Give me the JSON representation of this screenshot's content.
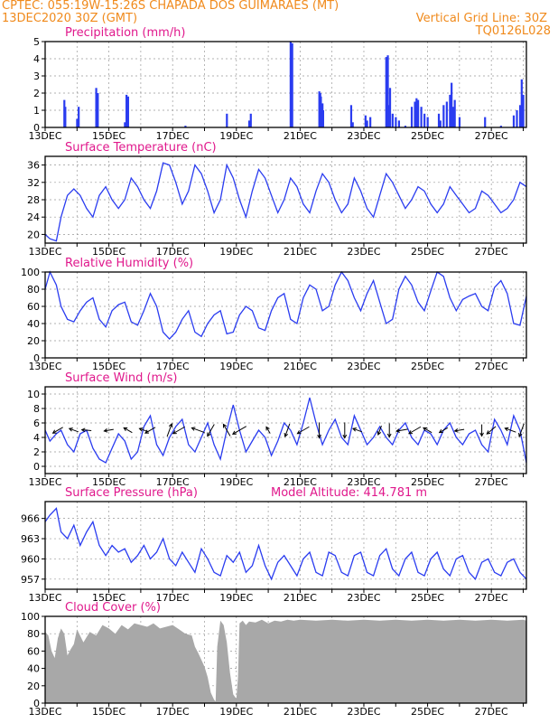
{
  "header": {
    "line1": "CPTEC:   055:19W-15:26S   CHAPADA DOS GUIMARAES (MT)",
    "line2": "13DEC2020 30Z (GMT)",
    "vertical_grid": "Vertical Grid Line: 30Z",
    "code": "TQ0126L028"
  },
  "x_ticks": [
    "13DEC",
    "15DEC",
    "17DEC",
    "19DEC",
    "21DEC",
    "23DEC",
    "25DEC",
    "27DEC"
  ],
  "colors": {
    "header": "#f08a1c",
    "title": "#e0188c",
    "line": "#2a3cf0",
    "bar": "#2a3cf0",
    "cloud": "#a8a8a8"
  },
  "panels": [
    {
      "title": "Precipitation (mm/h)",
      "extra": ""
    },
    {
      "title": "Surface Temperature (nC)",
      "extra": ""
    },
    {
      "title": "Relative Humidity (%)",
      "extra": ""
    },
    {
      "title": "Surface Wind (m/s)",
      "extra": ""
    },
    {
      "title": "Surface Pressure (hPa)",
      "extra": "Model Altitude: 414.781 m"
    },
    {
      "title": "Cloud Cover (%)",
      "extra": ""
    }
  ],
  "chart_data": [
    {
      "type": "bar",
      "title": "Precipitation (mm/h)",
      "ylim": [
        0,
        5
      ],
      "yticks": [
        0,
        1,
        2,
        3,
        4,
        5
      ],
      "x_range_days": [
        13,
        28.1
      ],
      "x": [
        13.6,
        13.63,
        14.0,
        14.05,
        14.6,
        14.65,
        15.5,
        15.55,
        15.6,
        17.4,
        18.7,
        19.4,
        19.45,
        20.7,
        20.75,
        21.6,
        21.63,
        21.65,
        21.7,
        21.72,
        22.6,
        22.65,
        23.05,
        23.1,
        23.2,
        23.7,
        23.75,
        23.78,
        23.82,
        23.9,
        24.0,
        24.1,
        24.3,
        24.5,
        24.6,
        24.65,
        24.7,
        24.8,
        24.9,
        25.0,
        25.35,
        25.4,
        25.5,
        25.6,
        25.7,
        25.75,
        25.8,
        25.85,
        26.0,
        26.8,
        27.3,
        27.7,
        27.8,
        27.9,
        27.95,
        28.0
      ],
      "values": [
        1.6,
        1.2,
        0.5,
        1.2,
        2.3,
        2.0,
        0.3,
        1.9,
        1.8,
        0.1,
        0.8,
        0.4,
        0.8,
        5.0,
        4.9,
        2.1,
        2.0,
        1.8,
        1.4,
        1.0,
        1.3,
        0.3,
        0.7,
        0.4,
        0.6,
        4.1,
        4.2,
        1.3,
        2.3,
        0.8,
        0.6,
        0.4,
        0.1,
        1.2,
        1.5,
        1.7,
        1.6,
        1.2,
        0.8,
        0.6,
        0.8,
        0.4,
        1.3,
        1.5,
        1.9,
        2.6,
        1.2,
        1.6,
        0.6,
        0.6,
        0.1,
        0.7,
        1.0,
        1.3,
        2.8,
        1.9
      ]
    },
    {
      "type": "line",
      "title": "Surface Temperature (nC)",
      "ylim": [
        18,
        38
      ],
      "yticks": [
        20,
        24,
        28,
        32,
        36
      ],
      "x_range_days": [
        13,
        28.1
      ],
      "x": [
        13,
        13.15,
        13.35,
        13.5,
        13.7,
        13.9,
        14.1,
        14.3,
        14.5,
        14.7,
        14.9,
        15.1,
        15.3,
        15.5,
        15.7,
        15.9,
        16.1,
        16.3,
        16.5,
        16.7,
        16.9,
        17.1,
        17.3,
        17.5,
        17.7,
        17.9,
        18.1,
        18.3,
        18.5,
        18.7,
        18.9,
        19.1,
        19.3,
        19.5,
        19.7,
        19.9,
        20.1,
        20.3,
        20.5,
        20.7,
        20.9,
        21.1,
        21.3,
        21.5,
        21.7,
        21.9,
        22.1,
        22.3,
        22.5,
        22.7,
        22.9,
        23.1,
        23.3,
        23.5,
        23.7,
        23.9,
        24.1,
        24.3,
        24.5,
        24.7,
        24.9,
        25.1,
        25.3,
        25.5,
        25.7,
        25.9,
        26.1,
        26.3,
        26.5,
        26.7,
        26.9,
        27.1,
        27.3,
        27.5,
        27.7,
        27.9,
        28.1
      ],
      "values": [
        20,
        19,
        18.5,
        24,
        29,
        30.5,
        29,
        26,
        24,
        29,
        31,
        28,
        26,
        28,
        33,
        31,
        28,
        26,
        30,
        36.5,
        36,
        32,
        27,
        30,
        36,
        34,
        30,
        25,
        28,
        36,
        33,
        28,
        24,
        30,
        35,
        33,
        29,
        25,
        28,
        33,
        31,
        27,
        25,
        30,
        34,
        32,
        28,
        25,
        27,
        33,
        30,
        26,
        24,
        29,
        34,
        32,
        29,
        26,
        28,
        31,
        30,
        27,
        25,
        27,
        31,
        29,
        27,
        25,
        26,
        30,
        29,
        27,
        25,
        26,
        28,
        32,
        31
      ]
    },
    {
      "type": "line",
      "title": "Relative Humidity (%)",
      "ylim": [
        0,
        100
      ],
      "yticks": [
        0,
        20,
        40,
        60,
        80,
        100
      ],
      "x_range_days": [
        13,
        28.1
      ],
      "x": [
        13,
        13.15,
        13.35,
        13.5,
        13.7,
        13.9,
        14.1,
        14.3,
        14.5,
        14.7,
        14.9,
        15.1,
        15.3,
        15.5,
        15.7,
        15.9,
        16.1,
        16.3,
        16.5,
        16.7,
        16.9,
        17.1,
        17.3,
        17.5,
        17.7,
        17.9,
        18.1,
        18.3,
        18.5,
        18.7,
        18.9,
        19.1,
        19.3,
        19.5,
        19.7,
        19.9,
        20.1,
        20.3,
        20.5,
        20.7,
        20.9,
        21.1,
        21.3,
        21.5,
        21.7,
        21.9,
        22.1,
        22.3,
        22.5,
        22.7,
        22.9,
        23.1,
        23.3,
        23.5,
        23.7,
        23.9,
        24.1,
        24.3,
        24.5,
        24.7,
        24.9,
        25.1,
        25.3,
        25.5,
        25.7,
        25.9,
        26.1,
        26.3,
        26.5,
        26.7,
        26.9,
        27.1,
        27.3,
        27.5,
        27.7,
        27.9,
        28.1
      ],
      "values": [
        80,
        100,
        85,
        60,
        45,
        42,
        55,
        65,
        70,
        45,
        36,
        55,
        62,
        65,
        42,
        38,
        55,
        75,
        60,
        30,
        22,
        30,
        45,
        55,
        30,
        25,
        40,
        50,
        55,
        28,
        30,
        50,
        60,
        55,
        35,
        32,
        55,
        70,
        75,
        45,
        40,
        70,
        85,
        80,
        55,
        60,
        85,
        100,
        90,
        70,
        55,
        75,
        90,
        65,
        40,
        45,
        80,
        95,
        85,
        65,
        55,
        78,
        100,
        95,
        70,
        55,
        68,
        72,
        75,
        60,
        55,
        82,
        90,
        75,
        40,
        38,
        72
      ]
    },
    {
      "type": "line",
      "title": "Surface Wind (m/s)",
      "ylim": [
        -1,
        11
      ],
      "yticks": [
        0,
        2,
        4,
        6,
        8,
        10
      ],
      "x_range_days": [
        13,
        28.1
      ],
      "x": [
        13,
        13.15,
        13.35,
        13.5,
        13.7,
        13.9,
        14.1,
        14.3,
        14.5,
        14.7,
        14.9,
        15.1,
        15.3,
        15.5,
        15.7,
        15.9,
        16.1,
        16.3,
        16.5,
        16.7,
        16.9,
        17.1,
        17.3,
        17.5,
        17.7,
        17.9,
        18.1,
        18.3,
        18.5,
        18.7,
        18.9,
        19.1,
        19.3,
        19.5,
        19.7,
        19.9,
        20.1,
        20.3,
        20.5,
        20.7,
        20.9,
        21.1,
        21.3,
        21.5,
        21.7,
        21.9,
        22.1,
        22.3,
        22.5,
        22.7,
        22.9,
        23.1,
        23.3,
        23.5,
        23.7,
        23.9,
        24.1,
        24.3,
        24.5,
        24.7,
        24.9,
        25.1,
        25.3,
        25.5,
        25.7,
        25.9,
        26.1,
        26.3,
        26.5,
        26.7,
        26.9,
        27.1,
        27.3,
        27.5,
        27.7,
        27.9,
        28.1
      ],
      "values": [
        5,
        3.5,
        4.5,
        5,
        3,
        2,
        4.5,
        5,
        2.5,
        1,
        0.5,
        2.5,
        4.5,
        3.5,
        1,
        2,
        5.5,
        7,
        3,
        1.5,
        4,
        5.5,
        6.5,
        3,
        2,
        4,
        6,
        3,
        1,
        5,
        8.5,
        5,
        2,
        3.5,
        5,
        4,
        1.5,
        3.5,
        6,
        5,
        3,
        6,
        9.5,
        6,
        3,
        5,
        6.5,
        4,
        3,
        7,
        5,
        3,
        4,
        5.5,
        4,
        3,
        5,
        6,
        4,
        3,
        5,
        4.5,
        3,
        5,
        6,
        4,
        3,
        4.5,
        5,
        3,
        2,
        6.5,
        5,
        3,
        7,
        5,
        0.5
      ]
    },
    {
      "type": "line",
      "title": "Surface Pressure (hPa)",
      "ylim": [
        955.5,
        968.5
      ],
      "yticks": [
        957,
        960,
        963,
        966
      ],
      "x_range_days": [
        13,
        28.1
      ],
      "x": [
        13,
        13.15,
        13.35,
        13.5,
        13.7,
        13.9,
        14.1,
        14.3,
        14.5,
        14.7,
        14.9,
        15.1,
        15.3,
        15.5,
        15.7,
        15.9,
        16.1,
        16.3,
        16.5,
        16.7,
        16.9,
        17.1,
        17.3,
        17.5,
        17.7,
        17.9,
        18.1,
        18.3,
        18.5,
        18.7,
        18.9,
        19.1,
        19.3,
        19.5,
        19.7,
        19.9,
        20.1,
        20.3,
        20.5,
        20.7,
        20.9,
        21.1,
        21.3,
        21.5,
        21.7,
        21.9,
        22.1,
        22.3,
        22.5,
        22.7,
        22.9,
        23.1,
        23.3,
        23.5,
        23.7,
        23.9,
        24.1,
        24.3,
        24.5,
        24.7,
        24.9,
        25.1,
        25.3,
        25.5,
        25.7,
        25.9,
        26.1,
        26.3,
        26.5,
        26.7,
        26.9,
        27.1,
        27.3,
        27.5,
        27.7,
        27.9,
        28.1
      ],
      "values": [
        965.5,
        966.5,
        967.5,
        964,
        963,
        965,
        962,
        964,
        965.5,
        962,
        960.5,
        962,
        961,
        961.5,
        959.5,
        960.5,
        962,
        960,
        961,
        963,
        960,
        959,
        961,
        959.5,
        958,
        961.5,
        960,
        958,
        957.5,
        960.5,
        959.5,
        961,
        958,
        959,
        962,
        959,
        957,
        959.5,
        960.5,
        959,
        957.5,
        960,
        961,
        958,
        957.5,
        961,
        960.5,
        958,
        957.5,
        960.5,
        961,
        958,
        957.5,
        960.5,
        961.5,
        958.5,
        957.5,
        960,
        961,
        958,
        957.5,
        960,
        961,
        958.5,
        957.5,
        960,
        960.5,
        958,
        957,
        959.5,
        960,
        958,
        957.5,
        959.5,
        960,
        958,
        957
      ]
    },
    {
      "type": "area",
      "title": "Cloud Cover (%)",
      "ylim": [
        0,
        100
      ],
      "yticks": [
        0,
        20,
        40,
        60,
        80,
        100
      ],
      "x_range_days": [
        13,
        28.1
      ],
      "x": [
        13,
        13.1,
        13.2,
        13.3,
        13.4,
        13.5,
        13.6,
        13.7,
        13.8,
        13.9,
        14,
        14.2,
        14.4,
        14.6,
        14.8,
        15,
        15.2,
        15.4,
        15.6,
        15.8,
        16,
        16.2,
        16.4,
        16.6,
        16.8,
        17,
        17.2,
        17.4,
        17.6,
        17.7,
        17.8,
        17.9,
        18,
        18.1,
        18.2,
        18.3,
        18.35,
        18.4,
        18.5,
        18.6,
        18.7,
        18.8,
        18.9,
        19,
        19.05,
        19.1,
        19.2,
        19.3,
        19.4,
        19.6,
        19.8,
        20,
        20.2,
        20.4,
        20.6,
        20.8,
        21,
        21.5,
        22,
        22.5,
        23,
        23.5,
        24,
        24.5,
        25,
        25.5,
        26,
        26.5,
        27,
        27.5,
        28,
        28.1
      ],
      "values": [
        82,
        78,
        60,
        52,
        75,
        86,
        80,
        55,
        62,
        68,
        85,
        70,
        82,
        78,
        90,
        86,
        80,
        90,
        85,
        92,
        90,
        88,
        92,
        86,
        88,
        90,
        85,
        80,
        78,
        65,
        58,
        50,
        42,
        30,
        12,
        4,
        2,
        65,
        95,
        90,
        70,
        35,
        10,
        5,
        30,
        92,
        95,
        90,
        94,
        93,
        96,
        92,
        95,
        94,
        96,
        95,
        96,
        95,
        96,
        95,
        96,
        95,
        96,
        95,
        96,
        95,
        96,
        95,
        96,
        95,
        96,
        95
      ]
    }
  ],
  "wind_arrows": [
    {
      "day": 13.4,
      "dir_deg": 240,
      "speed": 4
    },
    {
      "day": 13.9,
      "dir_deg": 290,
      "speed": 3
    },
    {
      "day": 14.3,
      "dir_deg": 275,
      "speed": 3
    },
    {
      "day": 15.0,
      "dir_deg": 260,
      "speed": 3
    },
    {
      "day": 15.6,
      "dir_deg": 300,
      "speed": 3
    },
    {
      "day": 16.1,
      "dir_deg": 290,
      "speed": 3
    },
    {
      "day": 16.3,
      "dir_deg": 240,
      "speed": 4
    },
    {
      "day": 16.9,
      "dir_deg": 20,
      "speed": 5
    },
    {
      "day": 17.2,
      "dir_deg": 240,
      "speed": 5
    },
    {
      "day": 17.8,
      "dir_deg": 290,
      "speed": 5
    },
    {
      "day": 18.2,
      "dir_deg": 210,
      "speed": 5
    },
    {
      "day": 18.7,
      "dir_deg": 330,
      "speed": 5
    },
    {
      "day": 19.1,
      "dir_deg": 240,
      "speed": 6
    },
    {
      "day": 20.0,
      "dir_deg": 330,
      "speed": 2
    },
    {
      "day": 20.6,
      "dir_deg": 200,
      "speed": 5
    },
    {
      "day": 21.1,
      "dir_deg": 240,
      "speed": 5
    },
    {
      "day": 21.6,
      "dir_deg": 180,
      "speed": 6
    },
    {
      "day": 22.4,
      "dir_deg": 180,
      "speed": 6
    },
    {
      "day": 22.8,
      "dir_deg": 290,
      "speed": 3
    },
    {
      "day": 23.5,
      "dir_deg": 200,
      "speed": 3
    },
    {
      "day": 23.8,
      "dir_deg": 180,
      "speed": 5
    },
    {
      "day": 24.2,
      "dir_deg": 260,
      "speed": 4
    },
    {
      "day": 24.6,
      "dir_deg": 240,
      "speed": 5
    },
    {
      "day": 25.0,
      "dir_deg": 300,
      "speed": 3
    },
    {
      "day": 25.5,
      "dir_deg": 240,
      "speed": 3
    },
    {
      "day": 26.0,
      "dir_deg": 260,
      "speed": 3
    },
    {
      "day": 26.7,
      "dir_deg": 180,
      "speed": 4
    },
    {
      "day": 27.0,
      "dir_deg": 230,
      "speed": 4
    },
    {
      "day": 27.6,
      "dir_deg": 290,
      "speed": 4
    },
    {
      "day": 27.95,
      "dir_deg": 200,
      "speed": 5
    }
  ]
}
